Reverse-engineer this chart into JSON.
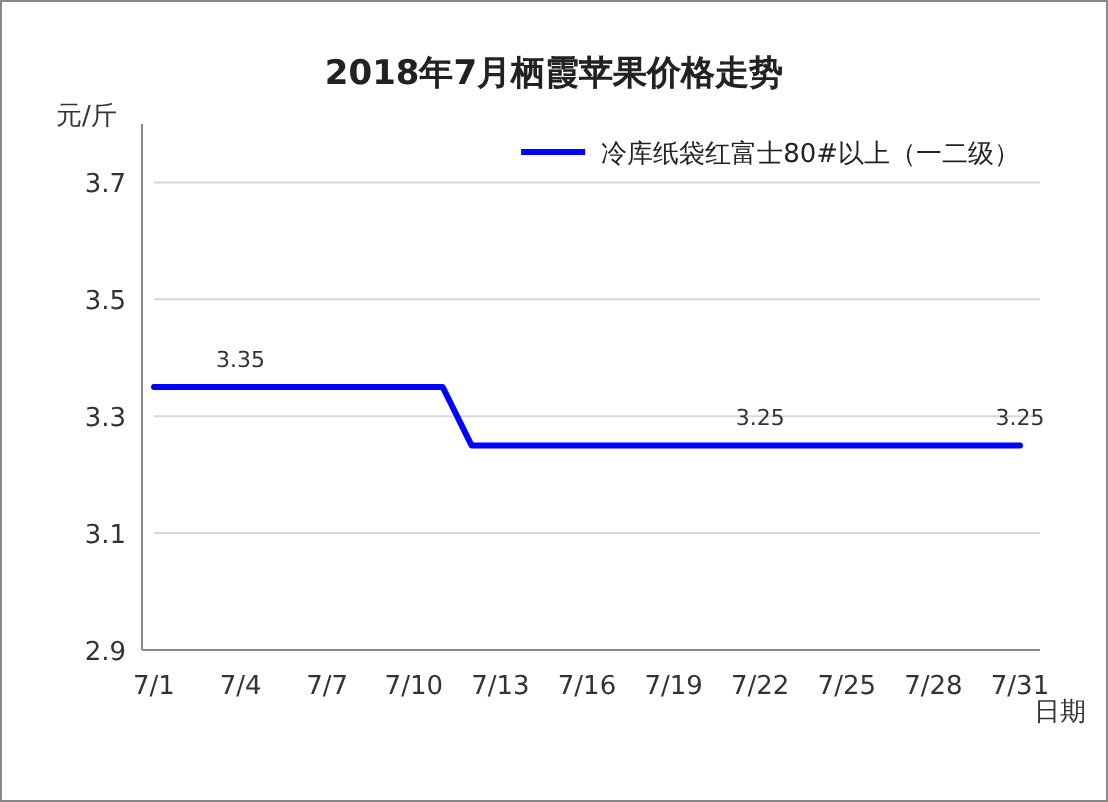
{
  "chart_data": {
    "type": "line",
    "title": "2018年7月栖霞苹果价格走势",
    "ylabel": "元/斤",
    "xlabel": "日期",
    "categories": [
      "7/1",
      null,
      null,
      "7/4",
      null,
      null,
      "7/7",
      null,
      null,
      "7/10",
      null,
      null,
      "7/13",
      null,
      null,
      "7/16",
      null,
      null,
      "7/19",
      null,
      null,
      "7/22",
      null,
      null,
      "7/25",
      null,
      null,
      "7/28",
      null,
      null,
      "7/31"
    ],
    "series": [
      {
        "name": "冷库纸袋红富士80#以上（一二级）",
        "color": "#0000ff",
        "values": [
          3.35,
          3.35,
          3.35,
          3.35,
          3.35,
          3.35,
          3.35,
          3.35,
          3.35,
          3.35,
          3.35,
          3.25,
          3.25,
          3.25,
          3.25,
          3.25,
          3.25,
          3.25,
          3.25,
          3.25,
          3.25,
          3.25,
          3.25,
          3.25,
          3.25,
          3.25,
          3.25,
          3.25,
          3.25,
          3.25,
          3.25
        ],
        "value_labels": [
          null,
          null,
          null,
          "3.35",
          null,
          null,
          null,
          null,
          null,
          null,
          null,
          null,
          null,
          null,
          null,
          null,
          null,
          null,
          null,
          null,
          null,
          "3.25",
          null,
          null,
          null,
          null,
          null,
          null,
          null,
          null,
          "3.25"
        ]
      }
    ],
    "ylim": [
      2.9,
      3.8
    ],
    "yticks": [
      2.9,
      3.1,
      3.3,
      3.5,
      3.7
    ],
    "grid": "y",
    "legend": "top right",
    "line_style": "solid"
  }
}
